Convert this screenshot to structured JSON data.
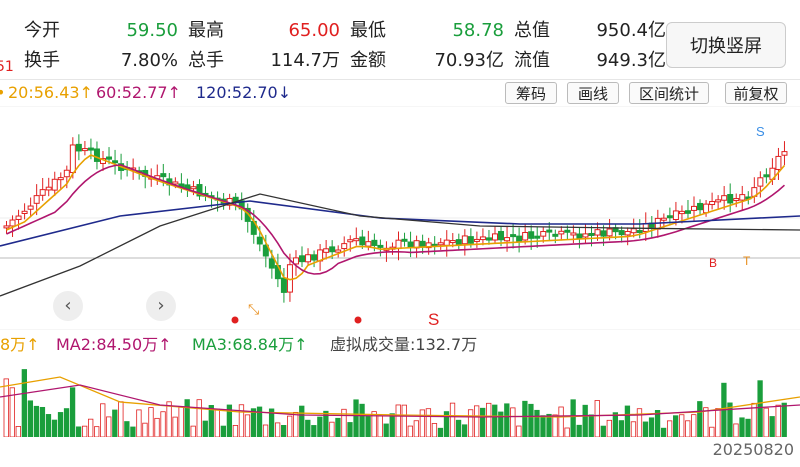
{
  "stats": {
    "row1": [
      {
        "label": "今开",
        "value": "59.50",
        "color": "#1a9e3c"
      },
      {
        "label": "最高",
        "value": "65.00",
        "color": "#e02020"
      },
      {
        "label": "最低",
        "value": "58.78",
        "color": "#1a9e3c"
      },
      {
        "label": "总值",
        "value": "950.4亿",
        "color": "#222222"
      }
    ],
    "row2": [
      {
        "label": "换手",
        "value": "7.80%",
        "color": "#222222"
      },
      {
        "label": "总手",
        "value": "114.7万",
        "color": "#222222"
      },
      {
        "label": "金额",
        "value": "70.93亿",
        "color": "#222222"
      },
      {
        "label": "流值",
        "value": "949.3亿",
        "color": "#222222"
      }
    ],
    "left_edge_marker": "51",
    "switch_button": "切换竖屏"
  },
  "ma": {
    "ma1": "20:56.43↑",
    "ma2": "60:52.77↑",
    "ma3": "120:52.70↓"
  },
  "toolbar": [
    "筹码",
    "画线",
    "区间统计",
    "前复权"
  ],
  "volume": {
    "ma1": "8万↑",
    "ma2": "MA2:84.50万↑",
    "ma3": "MA3:68.84万↑",
    "virtual": "虚拟成交量:132.7万"
  },
  "date": "20250820",
  "nav": {
    "prev": "‹",
    "next": "›"
  },
  "markers": {
    "s_top": "S",
    "s_red": "S",
    "b": "B",
    "t": "T"
  },
  "colors": {
    "up": "#e02020",
    "down": "#1a9e3c",
    "ma_short": "#e8a000",
    "ma_mid": "#b0166e",
    "ma_long": "#1f2a8c",
    "ma_xlong": "#333333"
  }
}
